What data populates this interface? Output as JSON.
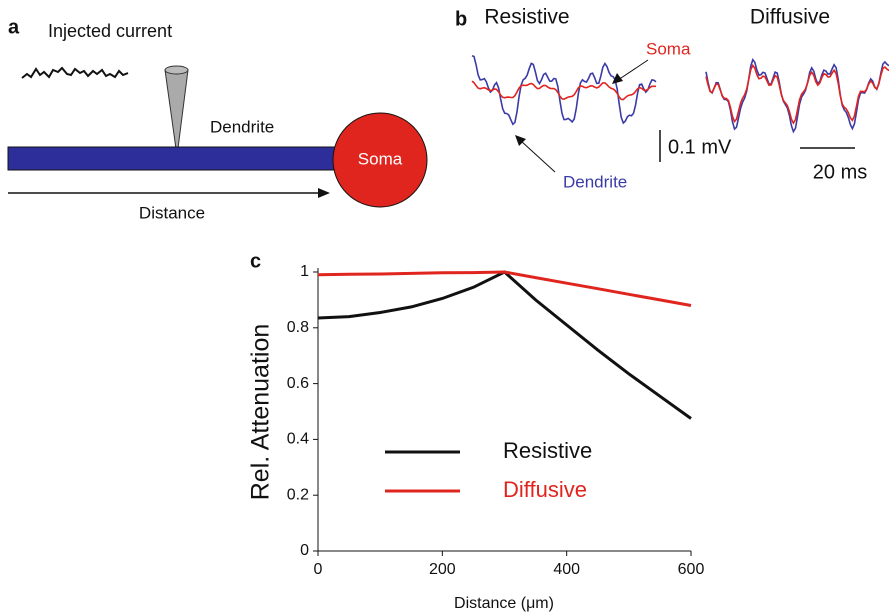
{
  "panel_a": {
    "label": "a",
    "injected_current": "Injected current",
    "dendrite": "Dendrite",
    "soma": "Soma",
    "distance": "Distance"
  },
  "panel_b": {
    "label": "b",
    "resistive": "Resistive",
    "diffusive": "Diffusive",
    "soma": "Soma",
    "dendrite": "Dendrite",
    "voltage_scale": "0.1 mV",
    "time_scale": "20 ms"
  },
  "chart_data": {
    "type": "line",
    "label": "c",
    "x_label": "Distance (μm)",
    "y_label": "Rel. Attenuation",
    "x": [
      0,
      50,
      100,
      150,
      200,
      250,
      300,
      350,
      400,
      450,
      500,
      550,
      600
    ],
    "series": [
      {
        "name": "Resistive",
        "color": "#111111",
        "values": [
          0.835,
          0.84,
          0.855,
          0.875,
          0.905,
          0.945,
          1.0,
          0.9,
          0.81,
          0.72,
          0.635,
          0.555,
          0.475
        ]
      },
      {
        "name": "Diffusive",
        "color": "#e0251f",
        "values": [
          0.99,
          0.992,
          0.993,
          0.995,
          0.997,
          0.998,
          1.0,
          0.98,
          0.96,
          0.94,
          0.92,
          0.9,
          0.88
        ]
      }
    ],
    "xlim": [
      0,
      600
    ],
    "ylim": [
      0,
      1
    ],
    "xticks": [
      0,
      200,
      400,
      600
    ],
    "yticks": [
      0,
      0.2,
      0.4,
      0.6,
      0.8,
      1
    ],
    "legend": "center"
  }
}
